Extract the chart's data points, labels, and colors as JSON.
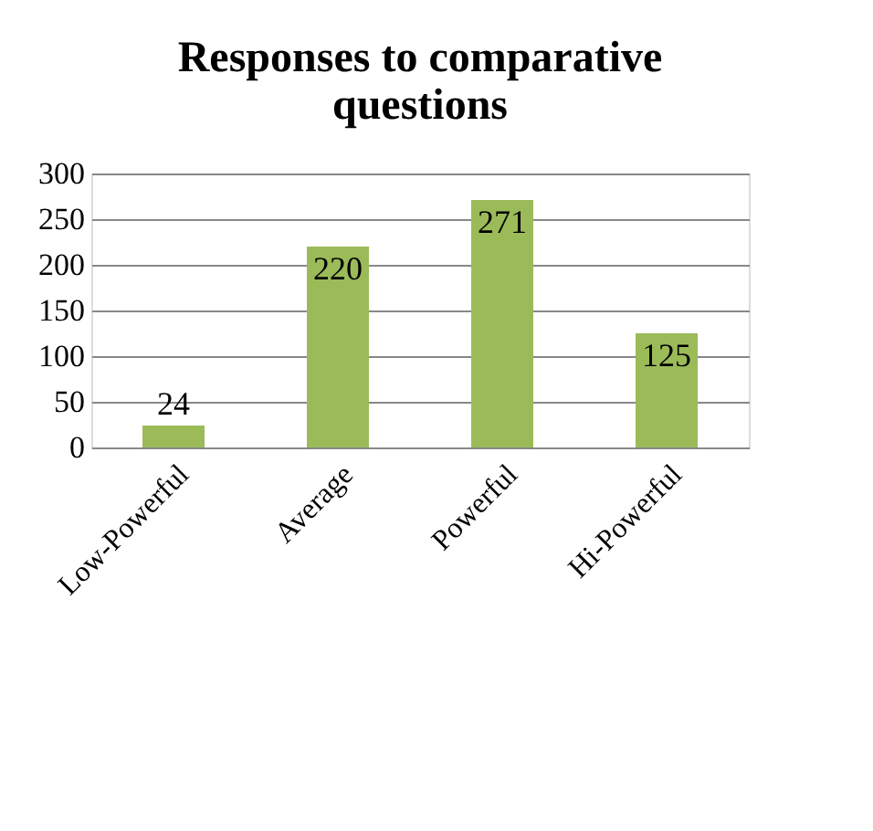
{
  "chart_data": {
    "type": "bar",
    "title": "Responses to comparative questions",
    "categories": [
      "Low-Powerful",
      "Average",
      "Powerful",
      "Hi-Powerful"
    ],
    "values": [
      24,
      220,
      271,
      125
    ],
    "color": "#9bbb59",
    "ylim": [
      0,
      300
    ],
    "yticks": [
      0,
      50,
      100,
      150,
      200,
      250,
      300
    ],
    "grid": "y",
    "data_labels": true
  }
}
